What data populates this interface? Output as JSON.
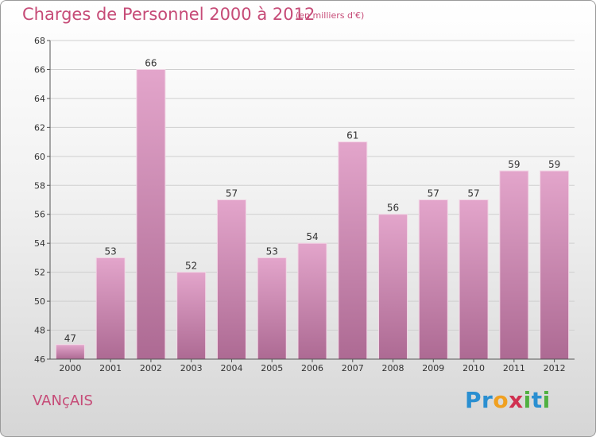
{
  "chart_data": {
    "type": "bar",
    "title": "Charges de Personnel 2000 à 2012",
    "subtitle": "(en milliers d'€)",
    "categories": [
      "2000",
      "2001",
      "2002",
      "2003",
      "2004",
      "2005",
      "2006",
      "2007",
      "2008",
      "2009",
      "2010",
      "2011",
      "2012"
    ],
    "values": [
      47,
      53,
      66,
      52,
      57,
      53,
      54,
      61,
      56,
      57,
      57,
      59,
      59
    ],
    "ylim": [
      46,
      68
    ],
    "yticks": [
      46,
      48,
      50,
      52,
      54,
      56,
      58,
      60,
      62,
      64,
      66,
      68
    ],
    "xlabel": "",
    "ylabel": "",
    "grid": true,
    "bar_color": "#d68ab6",
    "bar_color_dark": "#b06a95"
  },
  "footer": {
    "commune": "VANçAIS",
    "logo_letters": [
      {
        "ch": "P",
        "color": "#2a8fd1"
      },
      {
        "ch": "r",
        "color": "#2a8fd1"
      },
      {
        "ch": "o",
        "color": "#f0a020"
      },
      {
        "ch": "x",
        "color": "#d03050"
      },
      {
        "ch": "i",
        "color": "#50b040"
      },
      {
        "ch": "t",
        "color": "#2a8fd1"
      },
      {
        "ch": "i",
        "color": "#50b040"
      }
    ]
  }
}
